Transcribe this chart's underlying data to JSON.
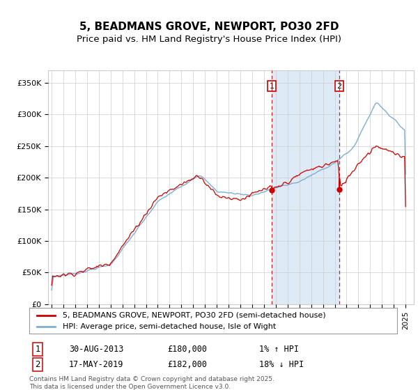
{
  "title": "5, BEADMANS GROVE, NEWPORT, PO30 2FD",
  "subtitle": "Price paid vs. HM Land Registry's House Price Index (HPI)",
  "legend_line1": "5, BEADMANS GROVE, NEWPORT, PO30 2FD (semi-detached house)",
  "legend_line2": "HPI: Average price, semi-detached house, Isle of Wight",
  "footnote": "Contains HM Land Registry data © Crown copyright and database right 2025.\nThis data is licensed under the Open Government Licence v3.0.",
  "sale1_label": "1",
  "sale1_date": "30-AUG-2013",
  "sale1_price": "£180,000",
  "sale1_hpi": "1% ↑ HPI",
  "sale1_year": 2013.667,
  "sale1_value": 180000,
  "sale2_label": "2",
  "sale2_date": "17-MAY-2019",
  "sale2_price": "£182,000",
  "sale2_hpi": "18% ↓ HPI",
  "sale2_year": 2019.375,
  "sale2_value": 182000,
  "hpi_color": "#7bafd4",
  "price_color": "#cc0000",
  "vline_color": "#cc0000",
  "span_color": "#deeaf5",
  "background_color": "#ffffff",
  "grid_color": "#cccccc",
  "ylim": [
    0,
    370000
  ],
  "yticks": [
    0,
    50000,
    100000,
    150000,
    200000,
    250000,
    300000,
    350000
  ],
  "ytick_labels": [
    "£0",
    "£50K",
    "£100K",
    "£150K",
    "£200K",
    "£250K",
    "£300K",
    "£350K"
  ],
  "xlim_start": 1994.7,
  "xlim_end": 2025.7
}
